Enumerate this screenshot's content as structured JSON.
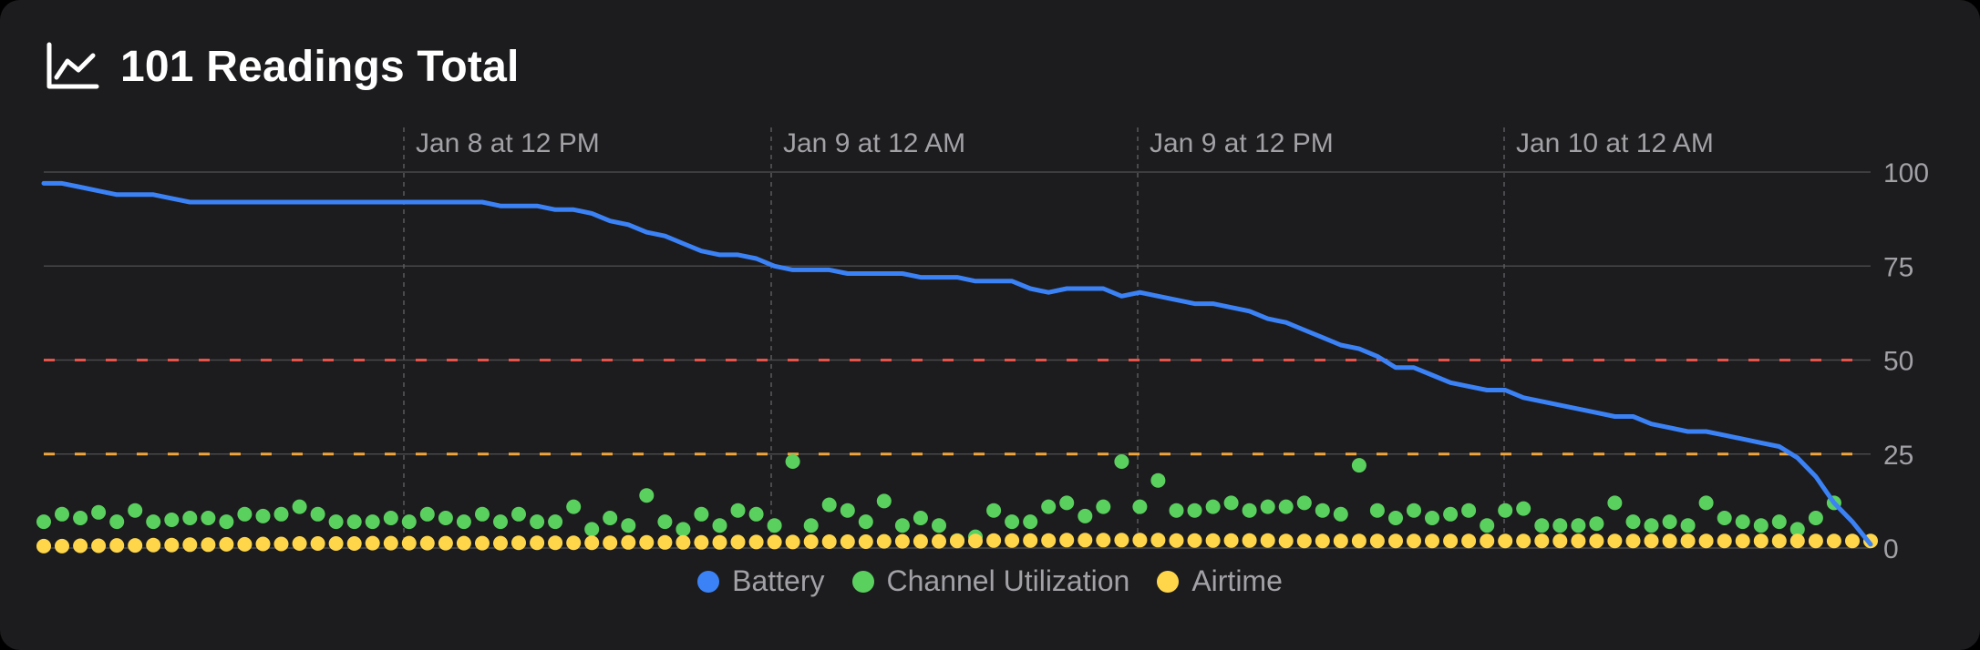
{
  "header": {
    "title": "101 Readings Total",
    "icon": "line-chart-icon"
  },
  "chart_data": {
    "type": "line",
    "title": "101 Readings Total",
    "x_time_labels": [
      "Jan 8 at 12 PM",
      "Jan 9 at 12 AM",
      "Jan 9 at 12 PM",
      "Jan 10 at 12 AM"
    ],
    "y_ticks": [
      100,
      75,
      50,
      25,
      0
    ],
    "ylim": [
      0,
      100
    ],
    "grid": true,
    "legend_position": "bottom",
    "thresholds": [
      {
        "value": 50,
        "color": "#e5534b",
        "style": "dashed"
      },
      {
        "value": 25,
        "color": "#f0a43c",
        "style": "dashed"
      }
    ],
    "series": [
      {
        "name": "Battery",
        "mark": "line",
        "color": "#3b82f6",
        "values": [
          97,
          97,
          96,
          95,
          94,
          94,
          94,
          93,
          92,
          92,
          92,
          92,
          92,
          92,
          92,
          92,
          92,
          92,
          92,
          92,
          92,
          92,
          92,
          92,
          92,
          91,
          91,
          91,
          90,
          90,
          89,
          87,
          86,
          84,
          83,
          81,
          79,
          78,
          78,
          77,
          75,
          74,
          74,
          74,
          73,
          73,
          73,
          73,
          72,
          72,
          72,
          71,
          71,
          71,
          69,
          68,
          69,
          69,
          69,
          67,
          68,
          67,
          66,
          65,
          65,
          64,
          63,
          61,
          60,
          58,
          56,
          54,
          53,
          51,
          48,
          48,
          46,
          44,
          43,
          42,
          42,
          40,
          39,
          38,
          37,
          36,
          35,
          35,
          33,
          32,
          31,
          31,
          30,
          29,
          28,
          27,
          24,
          19,
          12,
          7,
          1
        ]
      },
      {
        "name": "Channel Utilization",
        "mark": "scatter",
        "color": "#5ad05e",
        "values": [
          7,
          9,
          8,
          9.5,
          7,
          10,
          7,
          7.5,
          8,
          8,
          7,
          9,
          8.5,
          9,
          11,
          9,
          7,
          7,
          7,
          8,
          7,
          9,
          8,
          7,
          9,
          7,
          9,
          7,
          7,
          11,
          5,
          8,
          6,
          14,
          7,
          5,
          9,
          6,
          10,
          9,
          6,
          23,
          6,
          11.5,
          10,
          7,
          12.5,
          6,
          8,
          6,
          2,
          3,
          10,
          7,
          7,
          11,
          12,
          8.5,
          11,
          23,
          11,
          18,
          10,
          10,
          11,
          12,
          10,
          11,
          11,
          12,
          10,
          9,
          22,
          10,
          8,
          10,
          8,
          9,
          10,
          6,
          10,
          10.5,
          6,
          6,
          6,
          6.5,
          12,
          7,
          6,
          7,
          6,
          12,
          8,
          7,
          6,
          7,
          5,
          8,
          12
        ]
      },
      {
        "name": "Airtime",
        "mark": "scatter",
        "color": "#ffd64a",
        "values": [
          0.5,
          0.5,
          0.6,
          0.6,
          0.7,
          0.7,
          0.8,
          0.8,
          0.9,
          0.9,
          1,
          1,
          1.1,
          1.1,
          1.2,
          1.2,
          1.2,
          1.2,
          1.3,
          1.3,
          1.3,
          1.3,
          1.3,
          1.3,
          1.3,
          1.3,
          1.4,
          1.4,
          1.4,
          1.4,
          1.4,
          1.4,
          1.5,
          1.5,
          1.5,
          1.5,
          1.5,
          1.5,
          1.6,
          1.6,
          1.6,
          1.6,
          1.7,
          1.7,
          1.7,
          1.7,
          1.8,
          1.8,
          1.8,
          1.8,
          1.9,
          1.9,
          2,
          2,
          2,
          2,
          2.1,
          2.1,
          2.1,
          2.1,
          2.1,
          2.1,
          2,
          2,
          2,
          2,
          2,
          2,
          1.9,
          1.9,
          1.9,
          1.9,
          1.9,
          1.9,
          1.9,
          1.9,
          1.9,
          1.9,
          1.9,
          1.9,
          1.9,
          1.9,
          1.9,
          1.9,
          1.9,
          1.9,
          1.9,
          1.9,
          1.9,
          1.9,
          1.9,
          1.9,
          1.9,
          1.9,
          1.9,
          1.9,
          1.9,
          1.9,
          1.9,
          1.9,
          1.9
        ]
      }
    ]
  }
}
